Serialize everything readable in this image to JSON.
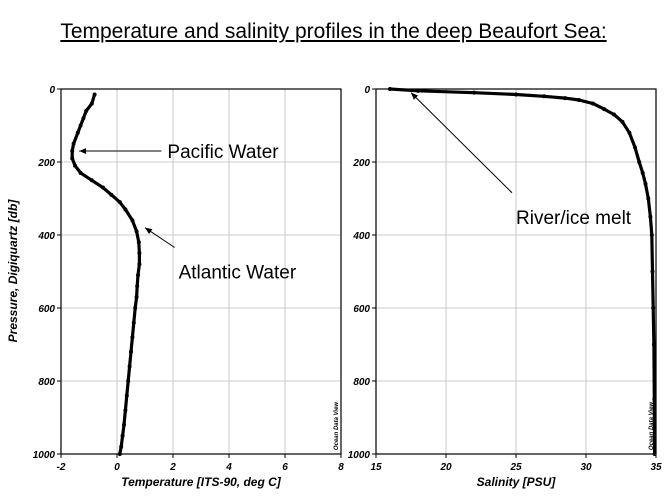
{
  "title": "Temperature and salinity profiles in the deep Beaufort Sea:",
  "ylabel": "Pressure, Digiquartz [db]",
  "watermark": "Ocean Data View",
  "chart_data": [
    {
      "type": "scatter",
      "xlabel": "Temperature [ITS-90, deg C]",
      "ylabel": "Pressure, Digiquartz [db]",
      "xlim": [
        -2,
        8
      ],
      "ylim": [
        1000,
        0
      ],
      "xticks": [
        -2,
        0,
        2,
        4,
        6,
        8
      ],
      "yticks": [
        0,
        200,
        400,
        600,
        800,
        1000
      ],
      "grid": true,
      "series": [
        {
          "x": [
            -0.8,
            -0.9,
            -1.1,
            -1.2,
            -1.3,
            -1.4,
            -1.55,
            -1.6,
            -1.6,
            -1.5,
            -1.3,
            -0.9,
            -0.5,
            -0.2,
            0.1,
            0.3,
            0.55,
            0.7,
            0.78,
            0.8,
            0.8,
            0.75,
            0.72,
            0.7,
            0.65,
            0.6,
            0.55,
            0.5,
            0.45,
            0.4,
            0.35,
            0.3,
            0.25,
            0.2,
            0.15,
            0.1
          ],
          "y": [
            15,
            40,
            60,
            80,
            100,
            120,
            150,
            170,
            190,
            210,
            230,
            250,
            270,
            290,
            310,
            330,
            360,
            390,
            420,
            450,
            480,
            510,
            540,
            570,
            600,
            640,
            680,
            720,
            760,
            800,
            840,
            880,
            920,
            950,
            980,
            1000
          ]
        }
      ],
      "annotations": [
        {
          "text": "Pacific Water",
          "x": 1.8,
          "y": 170,
          "arrow_to": {
            "x": -1.35,
            "y": 170
          }
        },
        {
          "text": "Atlantic Water",
          "x": 2.2,
          "y": 500,
          "arrow_to": {
            "x": 1.0,
            "y": 380
          }
        }
      ]
    },
    {
      "type": "scatter",
      "xlabel": "Salinity [PSU]",
      "ylabel": "",
      "xlim": [
        15,
        35
      ],
      "ylim": [
        1000,
        0
      ],
      "xticks": [
        15,
        20,
        25,
        30,
        35
      ],
      "yticks": [
        0,
        200,
        400,
        600,
        800,
        1000
      ],
      "grid": true,
      "series": [
        {
          "x": [
            16,
            18,
            22,
            25,
            27,
            28.5,
            29.5,
            30.5,
            31.3,
            32,
            32.6,
            33.1,
            33.5,
            33.8,
            34.05,
            34.25,
            34.45,
            34.6,
            34.7,
            34.75,
            34.8,
            34.85,
            34.88,
            34.9
          ],
          "y": [
            0,
            5,
            10,
            15,
            20,
            25,
            30,
            40,
            55,
            70,
            90,
            120,
            160,
            200,
            230,
            260,
            300,
            350,
            400,
            500,
            600,
            700,
            850,
            1000
          ]
        }
      ],
      "annotations": [
        {
          "text": "River/ice melt",
          "x": 25,
          "y": 350,
          "arrow_to": {
            "x": 17.5,
            "y": 10
          }
        }
      ]
    }
  ]
}
